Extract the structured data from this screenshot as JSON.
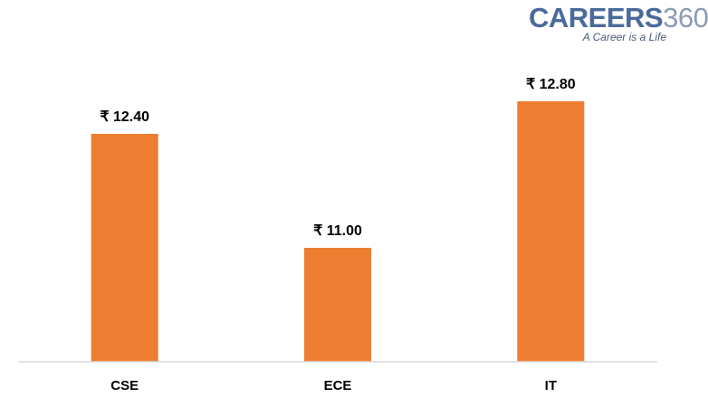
{
  "logo": {
    "brand_word": "CAREERS",
    "brand_number": "360",
    "tagline": "A Career is a Life"
  },
  "colors": {
    "bar": "#ed7d31",
    "axis": "#d9d9d9",
    "text": "#000000"
  },
  "chart_data": {
    "type": "bar",
    "title": "",
    "xlabel": "",
    "ylabel": "",
    "categories": [
      "CSE",
      "ECE",
      "IT"
    ],
    "values": [
      12.4,
      11.0,
      12.8
    ],
    "data_labels": [
      "₹ 12.40",
      "₹ 11.00",
      "₹ 12.80"
    ],
    "ylim": [
      9.6,
      13.1
    ],
    "grid": false,
    "legend": "none"
  }
}
